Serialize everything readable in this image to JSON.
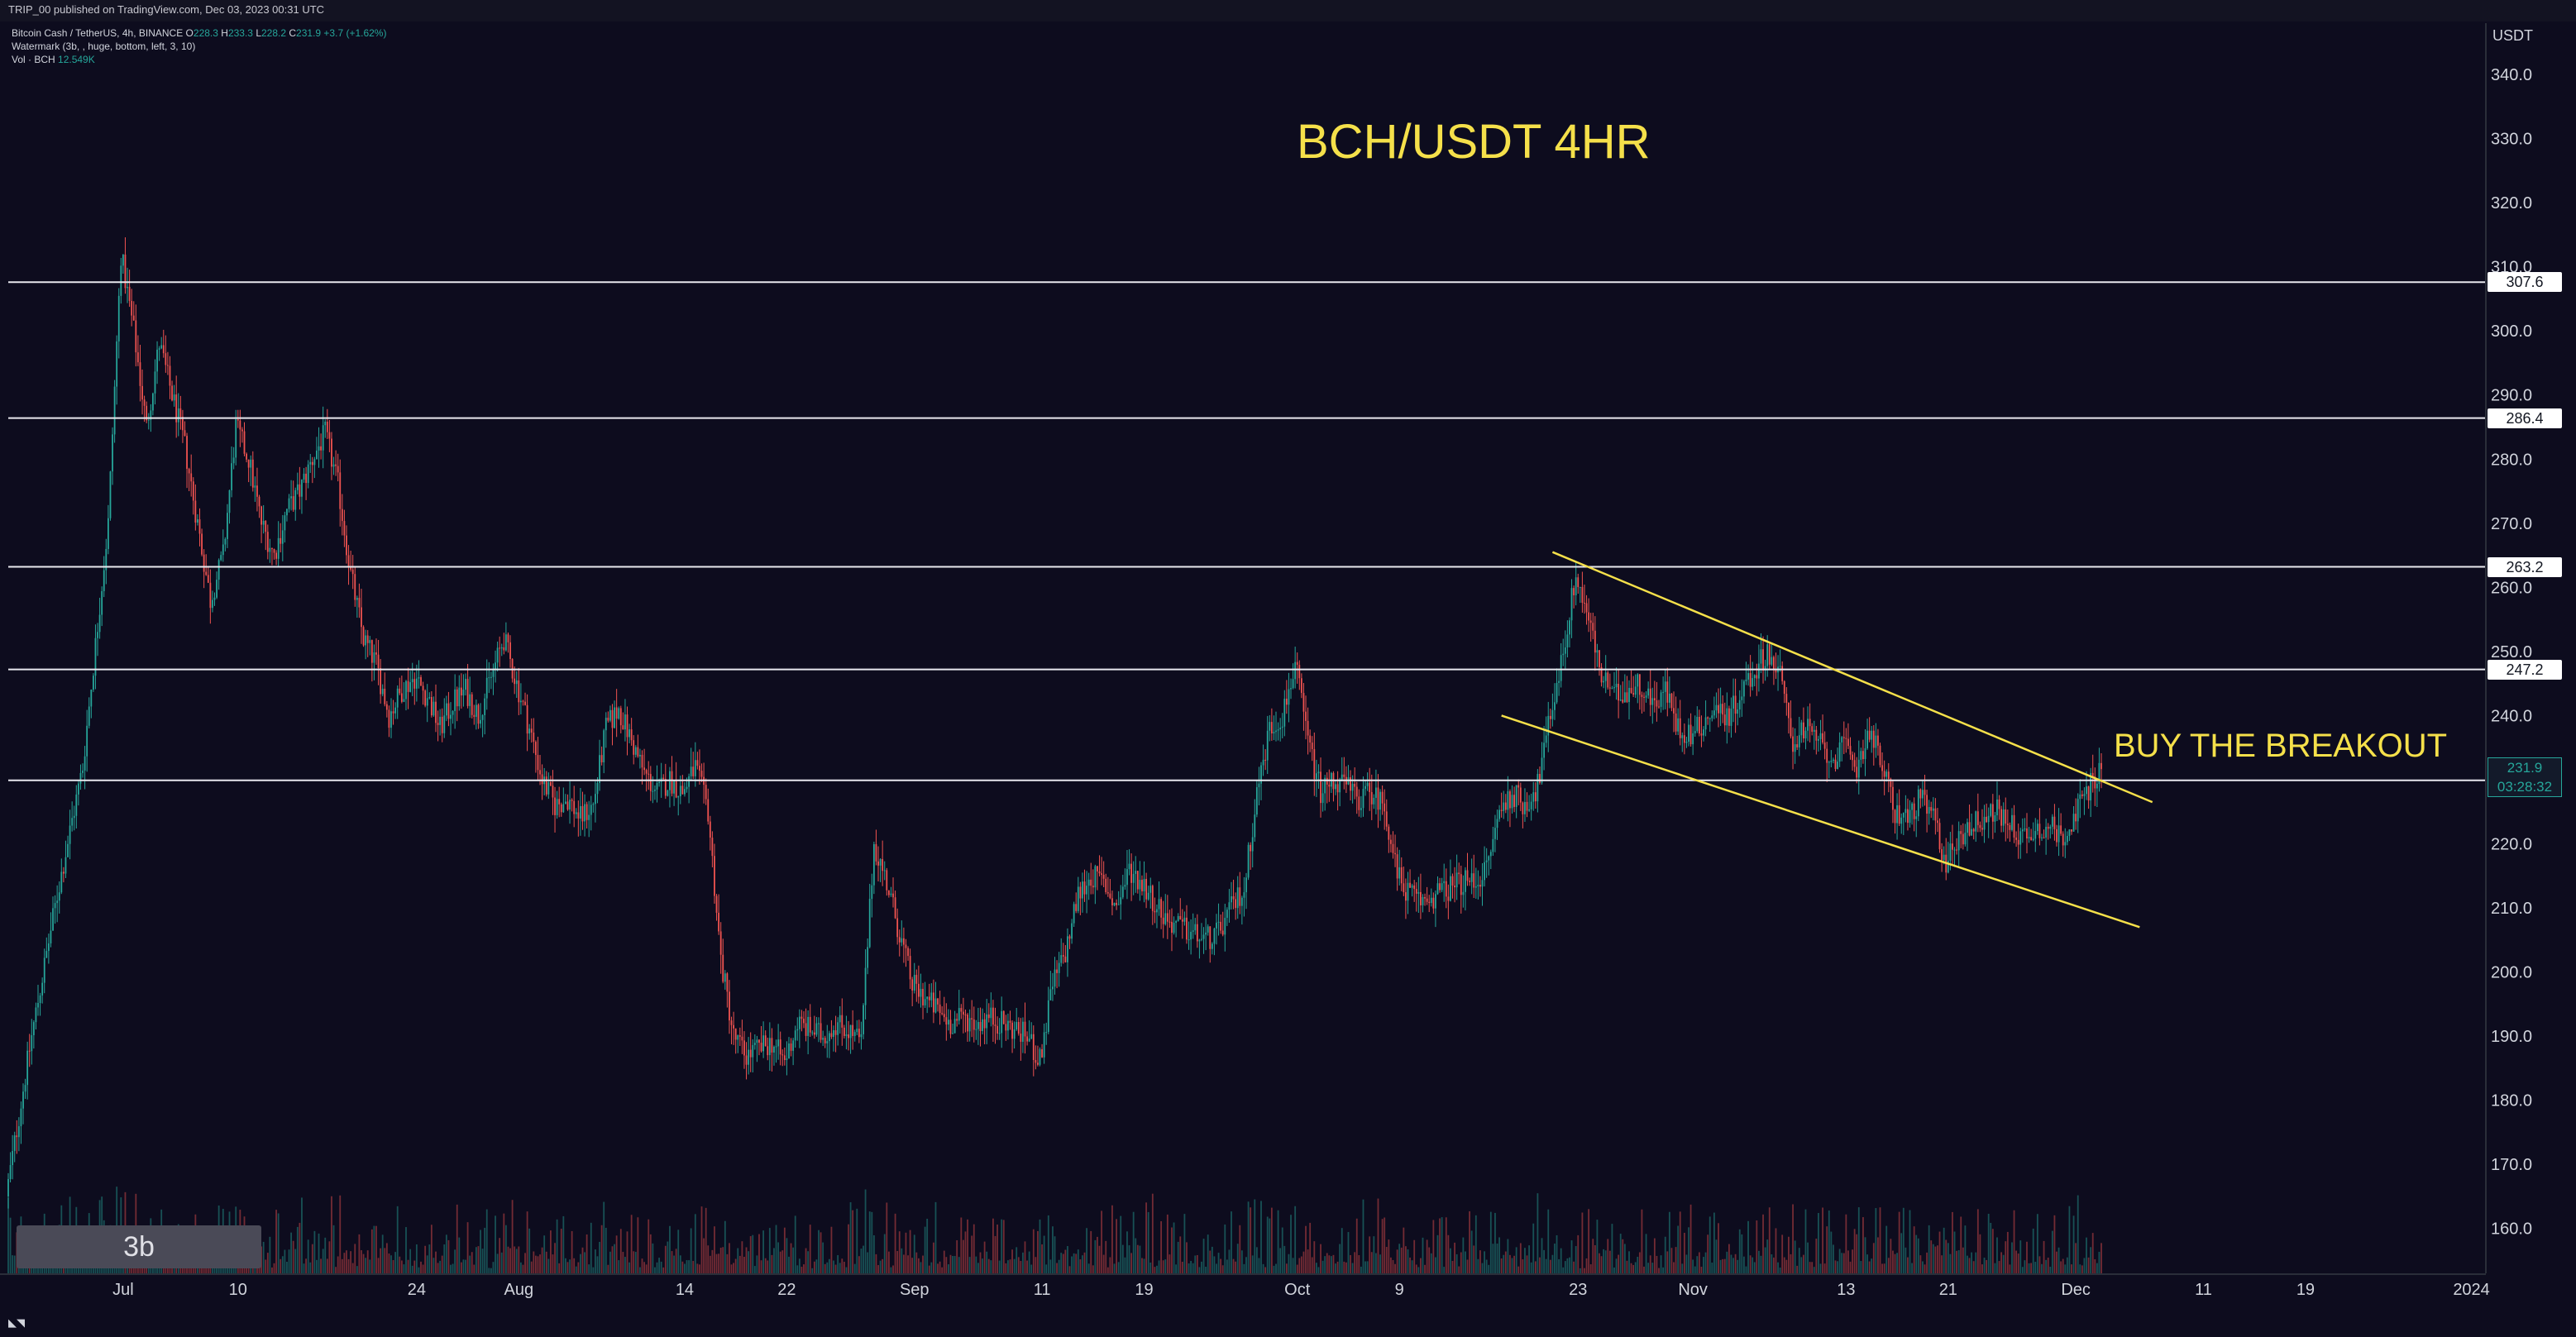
{
  "header": {
    "published_line": "TRIP_00 published on TradingView.com, Dec 03, 2023 00:31 UTC"
  },
  "legend": {
    "symbol_line": "Bitcoin Cash / TetherUS, 4h, BINANCE",
    "ohlc": {
      "open_label": "O",
      "open": "228.3",
      "high_label": "H",
      "high": "233.3",
      "low_label": "L",
      "low": "228.2",
      "close_label": "C",
      "close": "231.9",
      "change": "+3.7 (+1.62%)"
    },
    "watermark_line": "Watermark (3b, , huge, bottom, left, 3, 10)",
    "volume_label": "Vol · BCH",
    "volume_value": "12.549K"
  },
  "chart_data": {
    "type": "candlestick",
    "title": "BCH/USDT 4HR",
    "annotation": "BUY THE BREAKOUT",
    "watermark": "3b",
    "currency": "USDT",
    "yaxis": {
      "ticks": [
        160,
        170,
        180,
        190,
        200,
        210,
        220,
        230,
        240,
        250,
        260,
        270,
        280,
        290,
        300,
        310,
        320,
        330,
        340
      ],
      "tick_labels": [
        "160.0",
        "170.0",
        "180.0",
        "190.0",
        "200.0",
        "210.0",
        "220.0",
        "230.0",
        "240.0",
        "250.0",
        "260.0",
        "270.0",
        "280.0",
        "290.0",
        "300.0",
        "310.0",
        "320.0",
        "330.0",
        "340.0"
      ],
      "range": [
        153,
        348
      ]
    },
    "xaxis": {
      "tick_labels": [
        "Jul",
        "10",
        "24",
        "Aug",
        "14",
        "22",
        "Sep",
        "11",
        "19",
        "Oct",
        "9",
        "23",
        "Nov",
        "13",
        "21",
        "Dec",
        "11",
        "19",
        "2024"
      ],
      "tick_dates": [
        "2023-07-01",
        "2023-07-10",
        "2023-07-24",
        "2023-08-01",
        "2023-08-14",
        "2023-08-22",
        "2023-09-01",
        "2023-09-11",
        "2023-09-19",
        "2023-10-01",
        "2023-10-09",
        "2023-10-23",
        "2023-11-01",
        "2023-11-13",
        "2023-11-21",
        "2023-12-01",
        "2023-12-11",
        "2023-12-19",
        "2024-01-01"
      ],
      "range": [
        "2023-06-22",
        "2024-01-02"
      ]
    },
    "price_levels": [
      {
        "label": "307.6",
        "value": 307.6
      },
      {
        "label": "286.4",
        "value": 286.4
      },
      {
        "label": "263.2",
        "value": 263.2
      },
      {
        "label": "247.2",
        "value": 247.2
      },
      {
        "label": "229.9",
        "value": 229.9
      }
    ],
    "current_price": {
      "value": 231.9,
      "label": "231.9",
      "countdown": "03:28:32"
    },
    "channel": {
      "upper": {
        "start": [
          "2023-10-21",
          265.5
        ],
        "end": [
          "2023-12-07",
          226.5
        ]
      },
      "lower": {
        "start": [
          "2023-10-17",
          240.0
        ],
        "end": [
          "2023-12-06",
          207.0
        ]
      }
    },
    "price_path": [
      [
        "2023-06-22",
        165
      ],
      [
        "2023-06-24",
        190
      ],
      [
        "2023-06-26",
        212
      ],
      [
        "2023-06-28",
        232
      ],
      [
        "2023-06-30",
        270
      ],
      [
        "2023-07-01",
        312
      ],
      [
        "2023-07-02",
        300
      ],
      [
        "2023-07-03",
        285
      ],
      [
        "2023-07-04",
        298
      ],
      [
        "2023-07-05",
        290
      ],
      [
        "2023-07-06",
        282
      ],
      [
        "2023-07-07",
        270
      ],
      [
        "2023-07-08",
        258
      ],
      [
        "2023-07-09",
        265
      ],
      [
        "2023-07-10",
        285
      ],
      [
        "2023-07-11",
        280
      ],
      [
        "2023-07-12",
        270
      ],
      [
        "2023-07-13",
        265
      ],
      [
        "2023-07-14",
        272
      ],
      [
        "2023-07-15",
        275
      ],
      [
        "2023-07-16",
        280
      ],
      [
        "2023-07-17",
        284
      ],
      [
        "2023-07-18",
        276
      ],
      [
        "2023-07-19",
        262
      ],
      [
        "2023-07-20",
        252
      ],
      [
        "2023-07-21",
        248
      ],
      [
        "2023-07-22",
        240
      ],
      [
        "2023-07-23",
        244
      ],
      [
        "2023-07-24",
        246
      ],
      [
        "2023-07-25",
        243
      ],
      [
        "2023-07-26",
        238
      ],
      [
        "2023-07-27",
        242
      ],
      [
        "2023-07-28",
        244
      ],
      [
        "2023-07-29",
        240
      ],
      [
        "2023-07-30",
        246
      ],
      [
        "2023-07-31",
        252
      ],
      [
        "2023-08-01",
        245
      ],
      [
        "2023-08-02",
        238
      ],
      [
        "2023-08-03",
        230
      ],
      [
        "2023-08-04",
        226
      ],
      [
        "2023-08-05",
        227
      ],
      [
        "2023-08-06",
        224
      ],
      [
        "2023-08-07",
        226
      ],
      [
        "2023-08-08",
        238
      ],
      [
        "2023-08-09",
        241
      ],
      [
        "2023-08-10",
        236
      ],
      [
        "2023-08-11",
        231
      ],
      [
        "2023-08-12",
        228
      ],
      [
        "2023-08-13",
        230
      ],
      [
        "2023-08-14",
        228
      ],
      [
        "2023-08-15",
        232
      ],
      [
        "2023-08-16",
        225
      ],
      [
        "2023-08-17",
        202
      ],
      [
        "2023-08-18",
        190
      ],
      [
        "2023-08-19",
        187
      ],
      [
        "2023-08-20",
        188
      ],
      [
        "2023-08-21",
        189
      ],
      [
        "2023-08-22",
        186
      ],
      [
        "2023-08-23",
        192
      ],
      [
        "2023-08-24",
        191
      ],
      [
        "2023-08-25",
        190
      ],
      [
        "2023-08-26",
        192
      ],
      [
        "2023-08-27",
        191
      ],
      [
        "2023-08-28",
        189
      ],
      [
        "2023-08-29",
        220
      ],
      [
        "2023-08-30",
        214
      ],
      [
        "2023-08-31",
        206
      ],
      [
        "2023-09-01",
        198
      ],
      [
        "2023-09-02",
        196
      ],
      [
        "2023-09-03",
        194
      ],
      [
        "2023-09-04",
        192
      ],
      [
        "2023-09-05",
        193
      ],
      [
        "2023-09-06",
        192
      ],
      [
        "2023-09-07",
        193
      ],
      [
        "2023-09-08",
        192
      ],
      [
        "2023-09-09",
        191
      ],
      [
        "2023-09-10",
        190
      ],
      [
        "2023-09-11",
        186
      ],
      [
        "2023-09-12",
        198
      ],
      [
        "2023-09-13",
        203
      ],
      [
        "2023-09-14",
        212
      ],
      [
        "2023-09-15",
        215
      ],
      [
        "2023-09-16",
        214
      ],
      [
        "2023-09-17",
        210
      ],
      [
        "2023-09-18",
        216
      ],
      [
        "2023-09-19",
        214
      ],
      [
        "2023-09-20",
        211
      ],
      [
        "2023-09-21",
        208
      ],
      [
        "2023-09-22",
        207
      ],
      [
        "2023-09-23",
        206
      ],
      [
        "2023-09-24",
        205
      ],
      [
        "2023-09-25",
        206
      ],
      [
        "2023-09-26",
        210
      ],
      [
        "2023-09-27",
        213
      ],
      [
        "2023-09-28",
        228
      ],
      [
        "2023-09-29",
        238
      ],
      [
        "2023-09-30",
        240
      ],
      [
        "2023-10-01",
        248
      ],
      [
        "2023-10-02",
        236
      ],
      [
        "2023-10-03",
        228
      ],
      [
        "2023-10-04",
        230
      ],
      [
        "2023-10-05",
        229
      ],
      [
        "2023-10-06",
        227
      ],
      [
        "2023-10-07",
        228
      ],
      [
        "2023-10-08",
        226
      ],
      [
        "2023-10-09",
        215
      ],
      [
        "2023-10-10",
        212
      ],
      [
        "2023-10-11",
        211
      ],
      [
        "2023-10-12",
        212
      ],
      [
        "2023-10-13",
        213
      ],
      [
        "2023-10-14",
        214
      ],
      [
        "2023-10-15",
        214
      ],
      [
        "2023-10-16",
        216
      ],
      [
        "2023-10-17",
        225
      ],
      [
        "2023-10-18",
        228
      ],
      [
        "2023-10-19",
        226
      ],
      [
        "2023-10-20",
        229
      ],
      [
        "2023-10-21",
        240
      ],
      [
        "2023-10-22",
        250
      ],
      [
        "2023-10-23",
        262
      ],
      [
        "2023-10-24",
        255
      ],
      [
        "2023-10-25",
        246
      ],
      [
        "2023-10-26",
        243
      ],
      [
        "2023-10-27",
        244
      ],
      [
        "2023-10-28",
        245
      ],
      [
        "2023-10-29",
        242
      ],
      [
        "2023-10-30",
        244
      ],
      [
        "2023-10-31",
        238
      ],
      [
        "2023-11-01",
        237
      ],
      [
        "2023-11-02",
        239
      ],
      [
        "2023-11-03",
        241
      ],
      [
        "2023-11-04",
        240
      ],
      [
        "2023-11-05",
        244
      ],
      [
        "2023-11-06",
        247
      ],
      [
        "2023-11-07",
        250
      ],
      [
        "2023-11-08",
        246
      ],
      [
        "2023-11-09",
        236
      ],
      [
        "2023-11-10",
        238
      ],
      [
        "2023-11-11",
        236
      ],
      [
        "2023-11-12",
        233
      ],
      [
        "2023-11-13",
        235
      ],
      [
        "2023-11-14",
        232
      ],
      [
        "2023-11-15",
        238
      ],
      [
        "2023-11-16",
        232
      ],
      [
        "2023-11-17",
        225
      ],
      [
        "2023-11-18",
        224
      ],
      [
        "2023-11-19",
        227
      ],
      [
        "2023-11-20",
        224
      ],
      [
        "2023-11-21",
        217
      ],
      [
        "2023-11-22",
        221
      ],
      [
        "2023-11-23",
        223
      ],
      [
        "2023-11-24",
        224
      ],
      [
        "2023-11-25",
        225
      ],
      [
        "2023-11-26",
        223
      ],
      [
        "2023-11-27",
        221
      ],
      [
        "2023-11-28",
        222
      ],
      [
        "2023-11-29",
        223
      ],
      [
        "2023-11-30",
        221
      ],
      [
        "2023-12-01",
        224
      ],
      [
        "2023-12-02",
        228
      ],
      [
        "2023-12-03",
        231.9
      ]
    ]
  }
}
